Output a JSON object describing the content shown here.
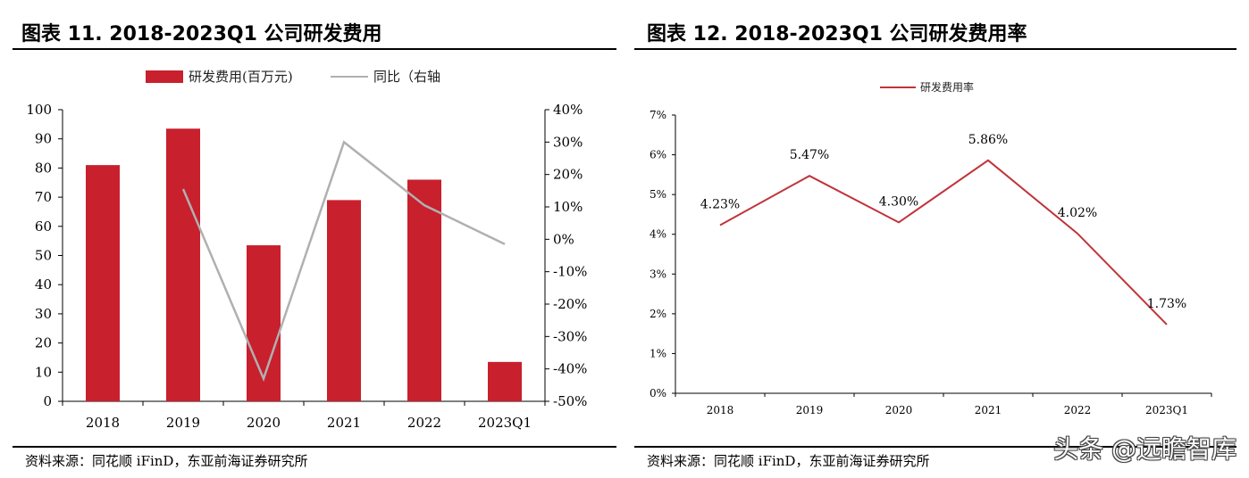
{
  "left_panel": {
    "title": "图表 11. 2018-2023Q1 公司研发费用",
    "source": "资料来源：同花顺 iFinD，东亚前海证券研究所"
  },
  "right_panel": {
    "title": "图表 12. 2018-2023Q1 公司研发费用率",
    "source": "资料来源：同花顺 iFinD，东亚前海证券研究所"
  },
  "watermark": "头条 @远瞻智库",
  "colors": {
    "bar": "#c8202d",
    "line_gray": "#b0b0b0",
    "line_red": "#c0343b"
  },
  "chart_data": [
    {
      "type": "bar",
      "categories": [
        "2018",
        "2019",
        "2020",
        "2021",
        "2022",
        "2023Q1"
      ],
      "series": [
        {
          "name": "研发费用(百万元)",
          "type": "bar",
          "axis": "left",
          "values": [
            81,
            93.5,
            53.5,
            69,
            76,
            13.5
          ]
        },
        {
          "name": "同比（右轴",
          "type": "line",
          "axis": "right",
          "values": [
            null,
            15.5,
            -43,
            30,
            10.5,
            -1.5
          ]
        }
      ],
      "ylim": [
        0,
        100
      ],
      "yticks": [
        0,
        10,
        20,
        30,
        40,
        50,
        60,
        70,
        80,
        90,
        100
      ],
      "y2lim": [
        -50,
        40
      ],
      "y2ticks": [
        "-50%",
        "-40%",
        "-30%",
        "-20%",
        "-10%",
        "0%",
        "10%",
        "20%",
        "30%",
        "40%"
      ],
      "legend": "top-center",
      "grid": false
    },
    {
      "type": "line",
      "categories": [
        "2018",
        "2019",
        "2020",
        "2021",
        "2022",
        "2023Q1"
      ],
      "series": [
        {
          "name": "研发费用率",
          "values": [
            4.23,
            5.47,
            4.3,
            5.86,
            4.02,
            1.73
          ],
          "labels": [
            "4.23%",
            "5.47%",
            "4.30%",
            "5.86%",
            "4.02%",
            "1.73%"
          ]
        }
      ],
      "ylim": [
        0,
        7
      ],
      "yticks": [
        "0%",
        "1%",
        "2%",
        "3%",
        "4%",
        "5%",
        "6%",
        "7%"
      ],
      "legend": "top-center",
      "grid": false
    }
  ]
}
